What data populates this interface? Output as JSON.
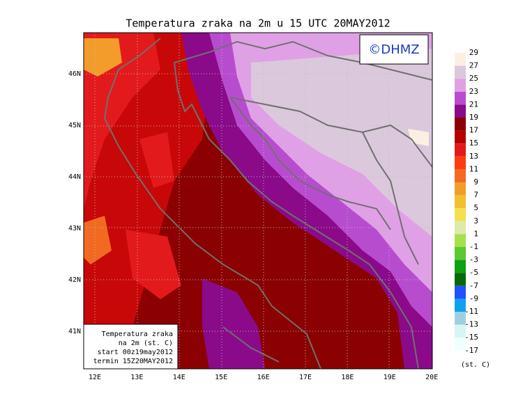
{
  "title": "Temperatura zraka na 2m u 15 UTC 20MAY2012",
  "logo": "©DHMZ",
  "lon_labels": [
    "12E",
    "13E",
    "14E",
    "15E",
    "16E",
    "17E",
    "18E",
    "19E",
    "20E"
  ],
  "lat_labels": [
    "46N",
    "45N",
    "44N",
    "43N",
    "42N",
    "41N"
  ],
  "legend": {
    "labels": [
      29,
      27,
      25,
      23,
      21,
      19,
      17,
      15,
      13,
      11,
      9,
      7,
      5,
      3,
      1,
      -1,
      -3,
      -5,
      -7,
      -9,
      -11,
      -13,
      -15,
      -17
    ],
    "colors": [
      "#fbefe2",
      "#dcc8dc",
      "#e0a0e6",
      "#b84ccf",
      "#8a0a8a",
      "#8b0000",
      "#b40000",
      "#e31a1c",
      "#ff3a10",
      "#f26a21",
      "#f39c2b",
      "#f0c030",
      "#f4e04a",
      "#dcebaa",
      "#a8e04a",
      "#5cc832",
      "#10a010",
      "#086808",
      "#2050ff",
      "#10a0f0",
      "#a0d0e0",
      "#d8f4f4",
      "#f0fffe"
    ],
    "unit": "(st. C)"
  },
  "info": [
    "Temperatura zraka",
    "na 2m (st. C)",
    "start 00z19may2012",
    "termin 15Z20MAY2012"
  ]
}
